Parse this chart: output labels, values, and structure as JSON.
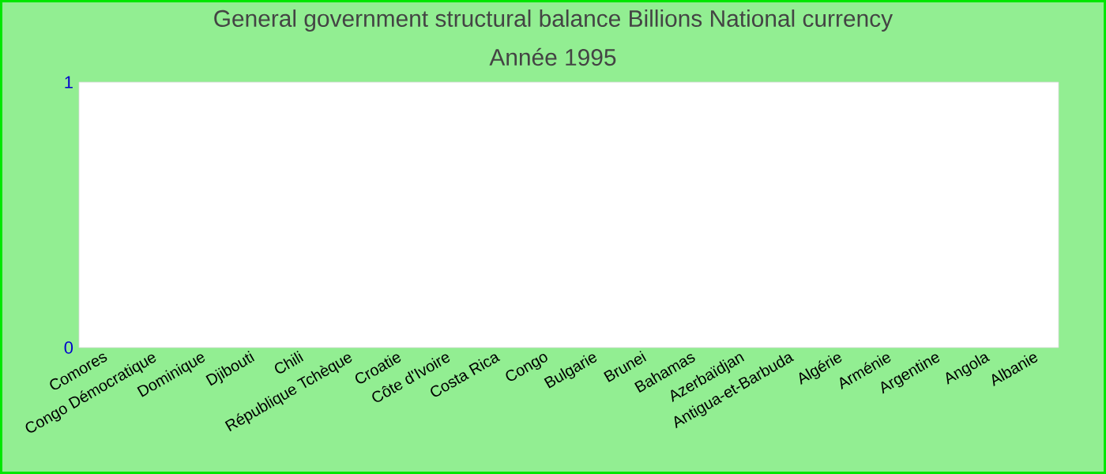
{
  "chart_data": {
    "type": "bar",
    "title": "General government structural balance Billions National currency",
    "subtitle": "Année 1995",
    "categories": [
      "Comores",
      "Congo Démocratique",
      "Dominique",
      "Djibouti",
      "Chili",
      "République Tchèque",
      "Croatie",
      "Côte d'Ivoire",
      "Costa Rica",
      "Congo",
      "Bulgarie",
      "Brunei",
      "Bahamas",
      "Azerbaïdjan",
      "Antigua-et-Barbuda",
      "Algérie",
      "Arménie",
      "Argentine",
      "Angola",
      "Albanie"
    ],
    "values": [
      0,
      0,
      0,
      0,
      0,
      0,
      0,
      0,
      0,
      0,
      0,
      0,
      0,
      0,
      0,
      0,
      0,
      0,
      0,
      0
    ],
    "ylim": [
      0,
      1
    ],
    "yticks": [
      0,
      1
    ]
  }
}
